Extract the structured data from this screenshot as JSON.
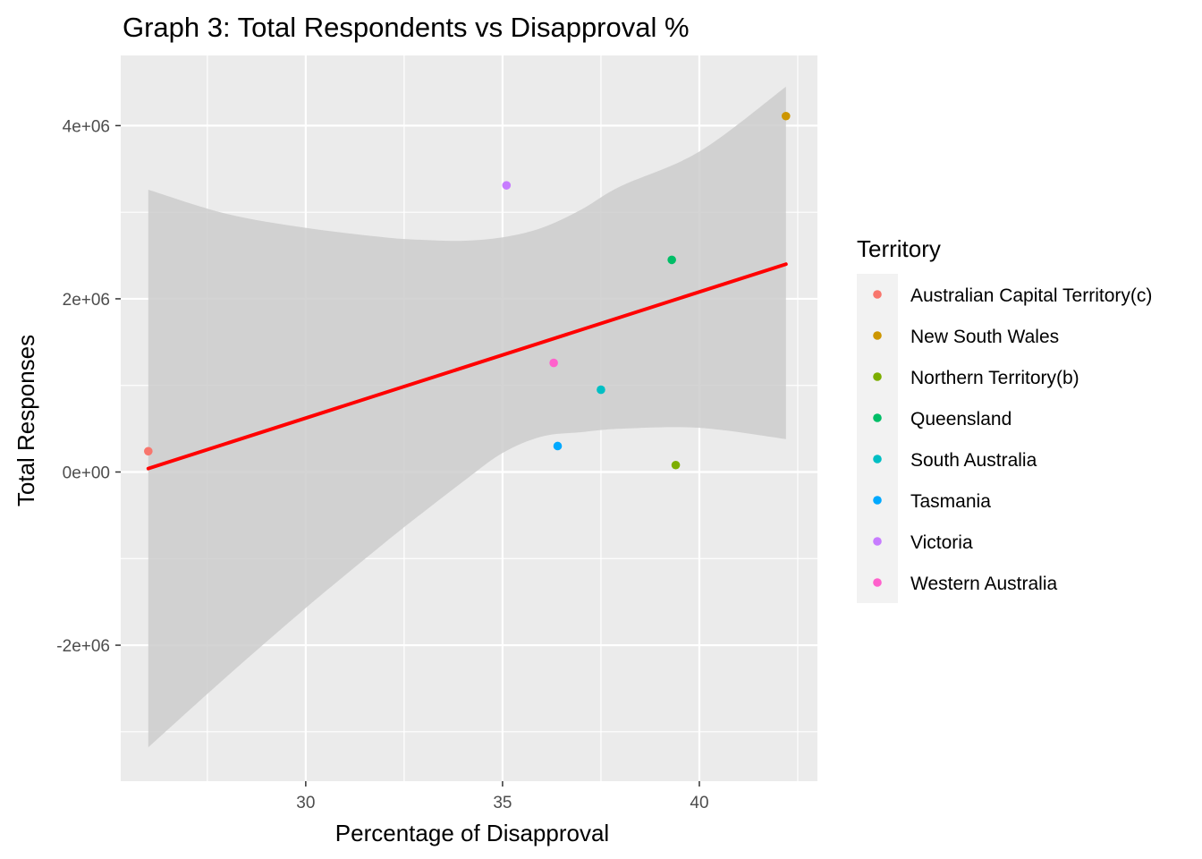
{
  "chart_data": {
    "type": "scatter",
    "title": "Graph 3: Total Respondents vs Disapproval %",
    "xlabel": "Percentage of Disapproval",
    "ylabel": "Total Responses",
    "xlim": [
      25.3,
      43.0
    ],
    "ylim": [
      -3570000,
      4810000
    ],
    "x_ticks": [
      30,
      35,
      40
    ],
    "x_tick_labels": [
      "30",
      "35",
      "40"
    ],
    "y_ticks": [
      -2000000,
      0,
      2000000,
      4000000
    ],
    "y_tick_labels": [
      "-2e+06",
      "0e+00",
      "2e+06",
      "4e+06"
    ],
    "grid": true,
    "panel_background": "#ebebeb",
    "legend": {
      "title": "Territory",
      "position": "right"
    },
    "series": [
      {
        "name": "Australian Capital Territory(c)",
        "color": "#F8766D",
        "x": [
          26.0
        ],
        "y": [
          240000
        ]
      },
      {
        "name": "New South Wales",
        "color": "#CD9600",
        "x": [
          42.2
        ],
        "y": [
          4110000
        ]
      },
      {
        "name": "Northern Territory(b)",
        "color": "#7CAE00",
        "x": [
          39.4
        ],
        "y": [
          80000
        ]
      },
      {
        "name": "Queensland",
        "color": "#00BE67",
        "x": [
          39.3
        ],
        "y": [
          2450000
        ]
      },
      {
        "name": "South Australia",
        "color": "#00BFC4",
        "x": [
          37.5
        ],
        "y": [
          950000
        ]
      },
      {
        "name": "Tasmania",
        "color": "#00A9FF",
        "x": [
          36.4
        ],
        "y": [
          300000
        ]
      },
      {
        "name": "Victoria",
        "color": "#C77CFF",
        "x": [
          35.1
        ],
        "y": [
          3310000
        ]
      },
      {
        "name": "Western Australia",
        "color": "#FF61CC",
        "x": [
          36.3
        ],
        "y": [
          1260000
        ]
      }
    ],
    "trend_line": {
      "method": "linear",
      "color": "#FF0000",
      "x": [
        26.0,
        42.2
      ],
      "y": [
        40000,
        2400000
      ]
    },
    "confidence_band": {
      "color": "#cccccc",
      "x": [
        26.0,
        28.0,
        30.0,
        32.0,
        33.0,
        34.0,
        35.0,
        36.0,
        37.0,
        38.0,
        40.0,
        42.2
      ],
      "upper": [
        3260000,
        2980000,
        2820000,
        2710000,
        2680000,
        2670000,
        2710000,
        2820000,
        3030000,
        3300000,
        3700000,
        4450000
      ],
      "lower": [
        -3180000,
        -2360000,
        -1570000,
        -820000,
        -460000,
        -110000,
        220000,
        410000,
        460000,
        500000,
        510000,
        380000
      ]
    }
  }
}
